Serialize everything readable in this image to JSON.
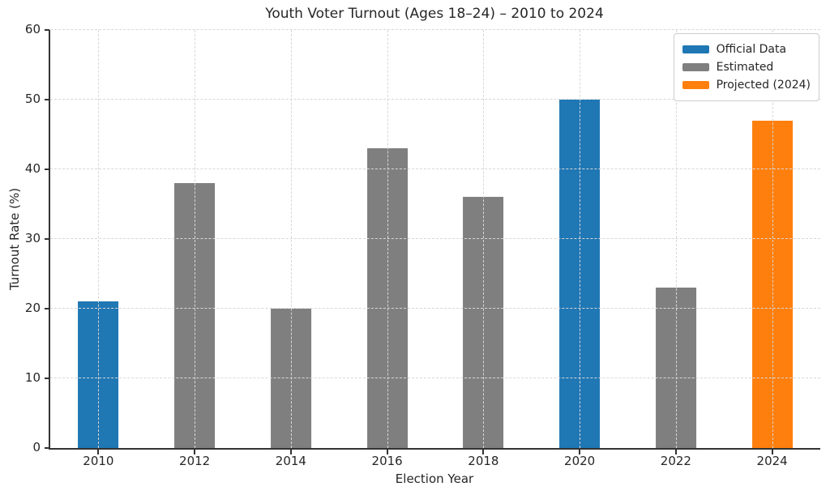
{
  "title": "Youth Voter Turnout (Ages 18–24) – 2010 to 2024",
  "colors": {
    "official": "#1f77b4",
    "estimated": "#7f7f7f",
    "projected": "#ff7f0e",
    "axis": "#333333",
    "grid": "#d7d7d7",
    "text": "#262626"
  },
  "legend": [
    {
      "label": "Official Data",
      "color_key": "official"
    },
    {
      "label": "Estimated",
      "color_key": "estimated"
    },
    {
      "label": "Projected (2024)",
      "color_key": "projected"
    }
  ],
  "chart_data": {
    "type": "bar",
    "title": "Youth Voter Turnout (Ages 18–24) – 2010 to 2024",
    "xlabel": "Election Year",
    "ylabel": "Turnout Rate (%)",
    "categories": [
      "2010",
      "2012",
      "2014",
      "2016",
      "2018",
      "2020",
      "2022",
      "2024"
    ],
    "values": [
      21,
      38,
      20,
      43,
      36,
      50,
      23,
      47
    ],
    "series_key": [
      "official",
      "estimated",
      "estimated",
      "estimated",
      "estimated",
      "official",
      "estimated",
      "projected"
    ],
    "ylim": [
      0,
      60
    ],
    "ytick_step": 10,
    "yticks": [
      0,
      10,
      20,
      30,
      40,
      50,
      60
    ],
    "grid": "dashed-both-axes-above-bars",
    "legend_position": "upper right",
    "bar_width_fraction": 0.42,
    "spines": "left-bottom-only"
  }
}
